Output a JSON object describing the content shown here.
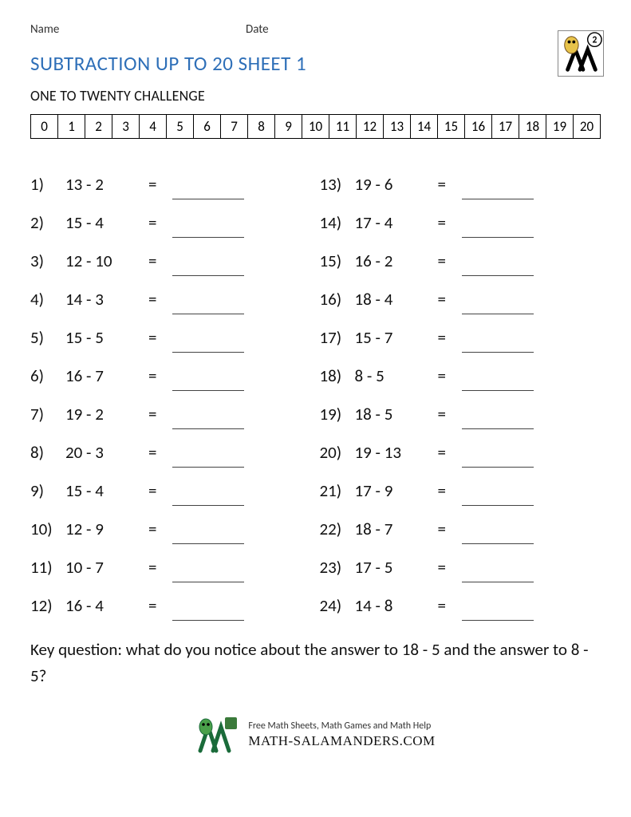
{
  "header": {
    "name_label": "Name",
    "date_label": "Date",
    "grade_badge": "2"
  },
  "title": "SUBTRACTION UP TO 20 SHEET 1",
  "subtitle": "ONE TO TWENTY CHALLENGE",
  "number_strip": [
    "0",
    "1",
    "2",
    "3",
    "4",
    "5",
    "6",
    "7",
    "8",
    "9",
    "10",
    "11",
    "12",
    "13",
    "14",
    "15",
    "16",
    "17",
    "18",
    "19",
    "20"
  ],
  "colors": {
    "title": "#2e6fb8",
    "text": "#111111",
    "border": "#000000",
    "answer_line": "#444444",
    "background": "#ffffff"
  },
  "typography": {
    "title_fontsize_pt": 19,
    "body_fontsize_pt": 16,
    "strip_fontsize_pt": 13,
    "font_family": "Calibri, Arial, sans-serif"
  },
  "problems_left": [
    {
      "n": "1)",
      "expr": "13 - 2"
    },
    {
      "n": "2)",
      "expr": "15 - 4"
    },
    {
      "n": "3)",
      "expr": "12 - 10"
    },
    {
      "n": "4)",
      "expr": "14 - 3"
    },
    {
      "n": "5)",
      "expr": "15 - 5"
    },
    {
      "n": "6)",
      "expr": "16 - 7"
    },
    {
      "n": "7)",
      "expr": "19 - 2"
    },
    {
      "n": "8)",
      "expr": "20 - 3"
    },
    {
      "n": "9)",
      "expr": "15 - 4"
    },
    {
      "n": "10)",
      "expr": "12 - 9"
    },
    {
      "n": "11)",
      "expr": "10 - 7"
    },
    {
      "n": "12)",
      "expr": "16 - 4"
    }
  ],
  "problems_right": [
    {
      "n": "13)",
      "expr": "19 - 6"
    },
    {
      "n": "14)",
      "expr": "17 - 4"
    },
    {
      "n": "15)",
      "expr": "16 - 2"
    },
    {
      "n": "16)",
      "expr": "18 - 4"
    },
    {
      "n": "17)",
      "expr": "15 - 7"
    },
    {
      "n": "18)",
      "expr": "8 - 5"
    },
    {
      "n": "19)",
      "expr": "18 - 5"
    },
    {
      "n": "20)",
      "expr": "19 - 13"
    },
    {
      "n": "21)",
      "expr": "17 - 9"
    },
    {
      "n": "22)",
      "expr": "18 - 7"
    },
    {
      "n": "23)",
      "expr": "17 - 5"
    },
    {
      "n": "24)",
      "expr": "14 - 8"
    }
  ],
  "equals_sign": "=",
  "key_question": "Key question: what do you notice about the answer to 18 - 5 and the answer to 8 - 5?",
  "footer": {
    "tagline": "Free Math Sheets, Math Games and Math Help",
    "site": "MATH-SALAMANDERS.COM"
  }
}
